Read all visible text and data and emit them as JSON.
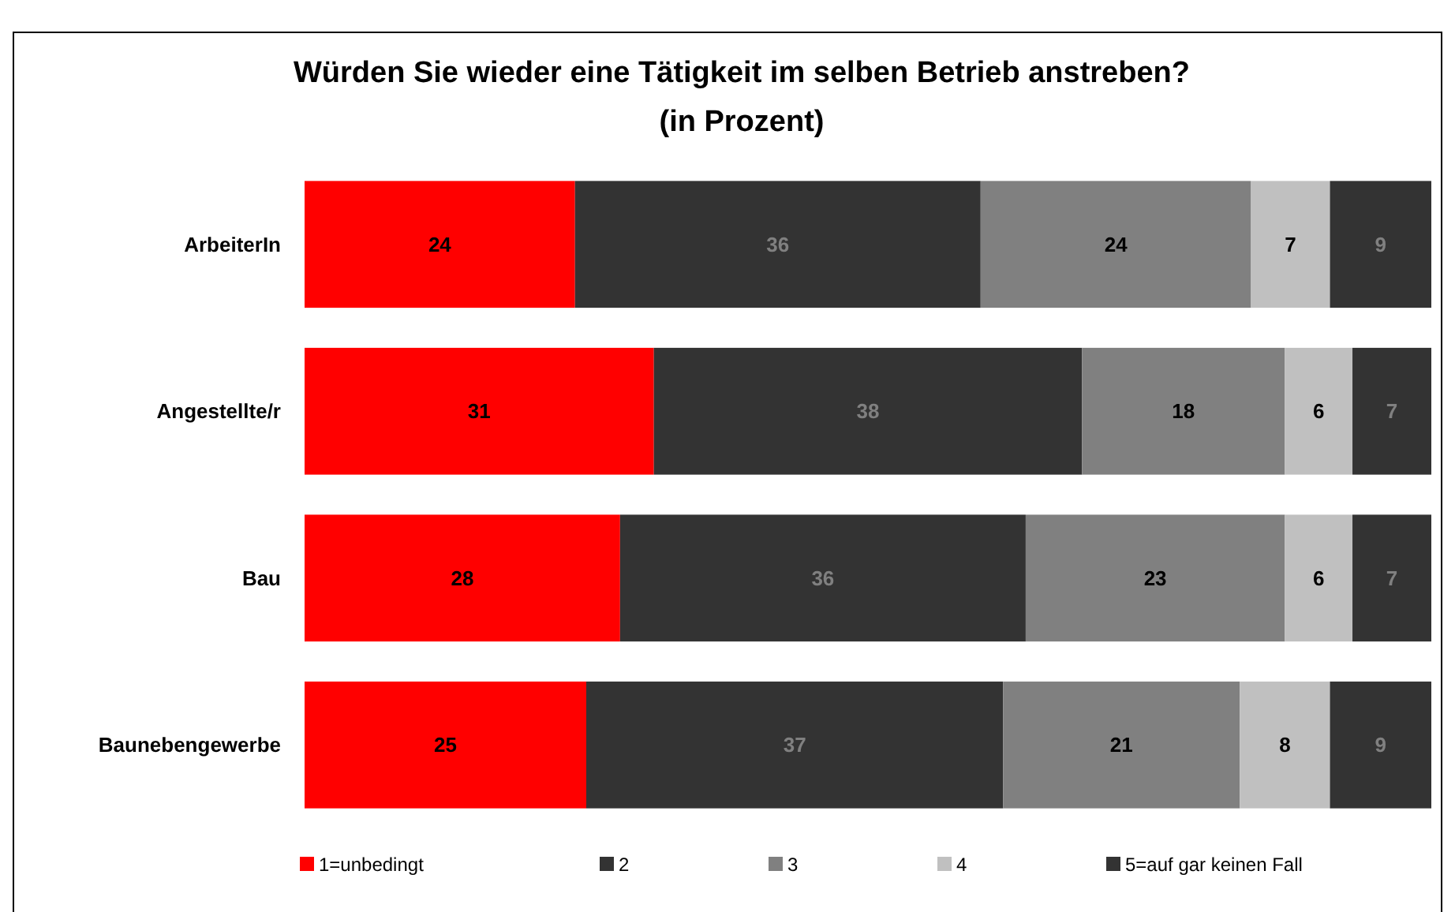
{
  "chart_data": {
    "type": "bar",
    "orientation": "horizontal",
    "stacked": true,
    "title": "Würden Sie wieder eine Tätigkeit im selben Betrieb anstreben?\n(in Prozent)",
    "categories": [
      "ArbeiterIn",
      "Angestellte/r",
      "Bau",
      "Baunebengewerbe"
    ],
    "series": [
      {
        "name": "1=unbedingt",
        "color": "#ff0000",
        "values": [
          24,
          31,
          28,
          25
        ]
      },
      {
        "name": "2",
        "color": "#333333",
        "values": [
          36,
          38,
          36,
          37
        ]
      },
      {
        "name": "3",
        "color": "#808080",
        "values": [
          24,
          18,
          23,
          21
        ]
      },
      {
        "name": "4",
        "color": "#c0c0c0",
        "values": [
          7,
          6,
          6,
          8
        ]
      },
      {
        "name": "5=auf gar keinen Fall",
        "color": "#333333",
        "values": [
          9,
          7,
          7,
          9
        ]
      }
    ],
    "data_labels": true,
    "legend": "bottom"
  }
}
